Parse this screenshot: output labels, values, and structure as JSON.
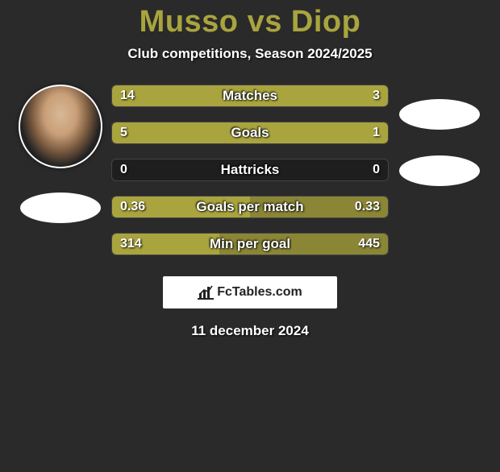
{
  "title": "Musso vs Diop",
  "subtitle": "Club competitions, Season 2024/2025",
  "date": "11 december 2024",
  "attribution": "FcTables.com",
  "colors": {
    "accent": "#a9a43e",
    "bar_bg": "#1e1e1e",
    "page_bg": "#2a2a2a",
    "text": "#ffffff"
  },
  "player_left": {
    "name": "Musso",
    "flag_style": "white-ellipse"
  },
  "player_right": {
    "name": "Diop",
    "flag_style": "white-ellipse"
  },
  "stats": [
    {
      "label": "Matches",
      "left_value": "14",
      "right_value": "3",
      "left_pct": 76,
      "right_pct": 24,
      "left_color": "#a9a43e",
      "right_color": "#a9a43e"
    },
    {
      "label": "Goals",
      "left_value": "5",
      "right_value": "1",
      "left_pct": 100,
      "right_pct": 0,
      "left_color": "#a9a43e",
      "right_color": "#a9a43e"
    },
    {
      "label": "Hattricks",
      "left_value": "0",
      "right_value": "0",
      "left_pct": 0,
      "right_pct": 0,
      "left_color": "#a9a43e",
      "right_color": "#a9a43e"
    },
    {
      "label": "Goals per match",
      "left_value": "0.36",
      "right_value": "0.33",
      "left_pct": 50,
      "right_pct": 50,
      "left_color": "#a9a43e",
      "right_color": "#8a8636"
    },
    {
      "label": "Min per goal",
      "left_value": "314",
      "right_value": "445",
      "left_pct": 39,
      "right_pct": 61,
      "left_color": "#a9a43e",
      "right_color": "#8a8636"
    }
  ]
}
